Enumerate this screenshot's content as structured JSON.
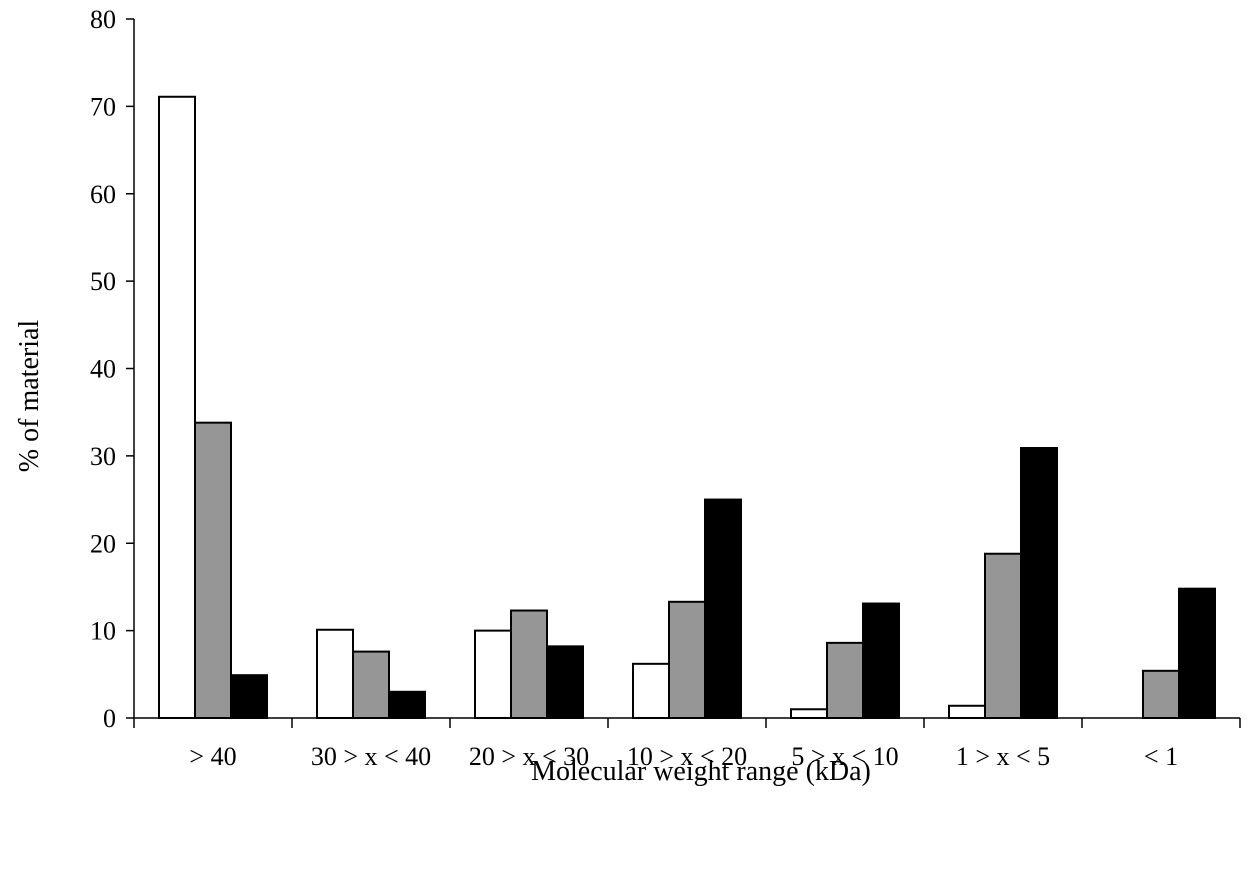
{
  "chart_data": {
    "type": "bar",
    "title": "",
    "xlabel": "Molecular weight range (kDa)",
    "ylabel": "% of material",
    "ylim": [
      0,
      80
    ],
    "yticks": [
      0,
      10,
      20,
      30,
      40,
      50,
      60,
      70,
      80
    ],
    "categories": [
      ">  40",
      "30 > x < 40",
      "20 > x < 30",
      "10 > x < 20",
      "5 > x < 10",
      "1 > x < 5",
      "< 1"
    ],
    "series": [
      {
        "color": "#ffffff",
        "values": [
          71.1,
          10.1,
          10.0,
          6.2,
          1.0,
          1.4,
          0
        ]
      },
      {
        "color": "#969696",
        "values": [
          33.8,
          7.6,
          12.3,
          13.3,
          8.6,
          18.8,
          5.4
        ]
      },
      {
        "color": "#000000",
        "values": [
          4.9,
          3.0,
          8.2,
          25.0,
          13.1,
          30.9,
          14.8
        ]
      }
    ],
    "grid": false,
    "legend": "none"
  }
}
